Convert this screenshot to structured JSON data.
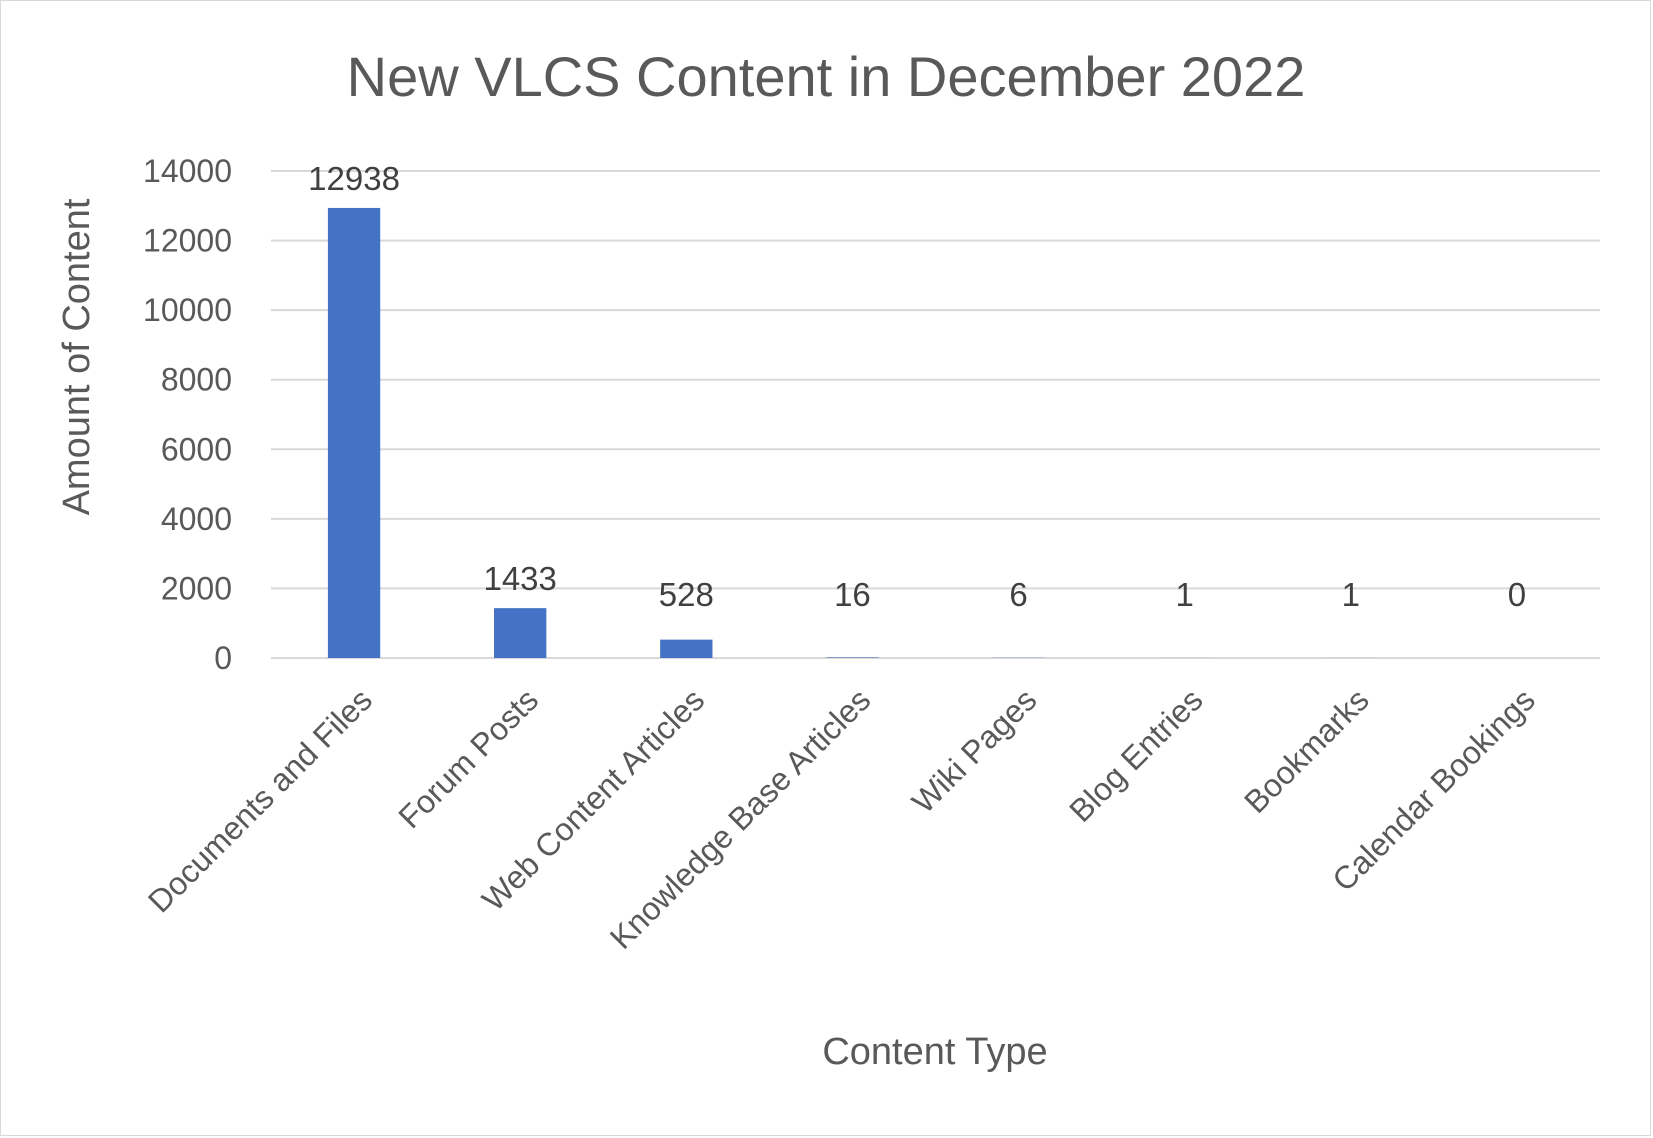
{
  "chart_data": {
    "type": "bar",
    "title": "New VLCS Content in December 2022",
    "xlabel": "Content Type",
    "ylabel": "Amount of Content",
    "categories": [
      "Documents and Files",
      "Forum Posts",
      "Web Content Articles",
      "Knowledge Base Articles",
      "Wiki Pages",
      "Blog Entries",
      "Bookmarks",
      "Calendar Bookings"
    ],
    "values": [
      12938,
      1433,
      528,
      16,
      6,
      1,
      1,
      0
    ],
    "ylim": [
      0,
      14000
    ],
    "yticks": [
      0,
      2000,
      4000,
      6000,
      8000,
      10000,
      12000,
      14000
    ],
    "grid": true,
    "legend": "none",
    "bar_color": "#4472C4",
    "data_labels": true
  }
}
